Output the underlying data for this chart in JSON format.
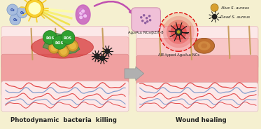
{
  "bg_color": "#f5f0d0",
  "title_left": "Photodynamic  bacteria  killing",
  "title_right": "Wound healing",
  "label_alive": "Alive S. aureus",
  "label_dead": "Dead S. aureus",
  "label_ncs1": "Ag₂₈Au₁ NCs@ZIF-8",
  "label_ncs2": "AIE-typed Ag₂₈Au₁ NCs",
  "vein_red": "#e03030",
  "vein_blue": "#7090c8",
  "sun_color": "#f8d030",
  "drop_color": "#c860c0",
  "ros_color": "#30a030",
  "bacteria_alive_color": "#d8a030",
  "bacteria_dead_color": "#202020",
  "o2_color": "#a0b8e0",
  "red_glow_color": "#e02020",
  "arrow_color": "#909090",
  "skin_light": "#fce0e0",
  "skin_mid": "#f0b0b0",
  "skin_deep": "#e89090",
  "wound_red": "#d83030",
  "heal_brown": "#c07840",
  "hair_color": "#c8a060",
  "leaf_color": "#5a9850",
  "nc_blob_color": "#f0c0d8",
  "nc_dot_color": "#9060a0"
}
